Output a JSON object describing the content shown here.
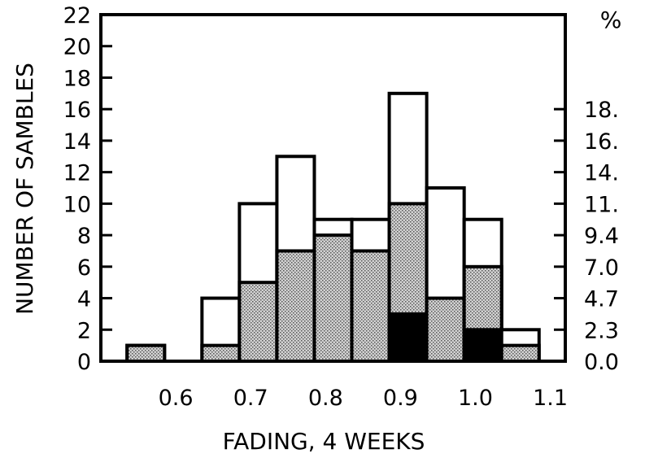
{
  "chart_data": {
    "type": "bar",
    "subtype": "stacked-histogram",
    "title": "",
    "xlabel": "FADING, 4 WEEKS",
    "ylabel": "NUMBER OF SAMBLES",
    "y2label": "%",
    "xlim": [
      0.5,
      1.12
    ],
    "ylim": [
      0,
      22
    ],
    "x_ticks": [
      "0.6",
      "0.7",
      "0.8",
      "0.9",
      "1.0",
      "1.1"
    ],
    "x_tick_values": [
      0.6,
      0.7,
      0.8,
      0.9,
      1.0,
      1.1
    ],
    "y_ticks": [
      0,
      2,
      4,
      6,
      8,
      10,
      12,
      14,
      16,
      18,
      20,
      22
    ],
    "y2_ticks": [
      {
        "label": "0.0",
        "y": 0
      },
      {
        "label": "2.3",
        "y": 2
      },
      {
        "label": "4.7",
        "y": 4
      },
      {
        "label": "7.0",
        "y": 6
      },
      {
        "label": "9.4",
        "y": 8
      },
      {
        "label": "11.",
        "y": 10
      },
      {
        "label": "14.",
        "y": 12
      },
      {
        "label": "16.",
        "y": 14
      },
      {
        "label": "18.",
        "y": 16
      }
    ],
    "bins": [
      {
        "start": 0.535,
        "end": 0.585,
        "black": 0,
        "dotted": 1,
        "total": 1
      },
      {
        "start": 0.635,
        "end": 0.685,
        "black": 0,
        "dotted": 1,
        "total": 4
      },
      {
        "start": 0.685,
        "end": 0.735,
        "black": 0,
        "dotted": 5,
        "total": 10
      },
      {
        "start": 0.735,
        "end": 0.785,
        "black": 0,
        "dotted": 7,
        "total": 13
      },
      {
        "start": 0.785,
        "end": 0.835,
        "black": 0,
        "dotted": 8,
        "total": 9
      },
      {
        "start": 0.835,
        "end": 0.885,
        "black": 0,
        "dotted": 7,
        "total": 9
      },
      {
        "start": 0.885,
        "end": 0.935,
        "black": 3,
        "dotted": 10,
        "total": 17
      },
      {
        "start": 0.935,
        "end": 0.985,
        "black": 0,
        "dotted": 4,
        "total": 11
      },
      {
        "start": 0.985,
        "end": 1.035,
        "black": 2,
        "dotted": 6,
        "total": 9
      },
      {
        "start": 1.035,
        "end": 1.085,
        "black": 0,
        "dotted": 1,
        "total": 2
      }
    ],
    "grid": false,
    "legend": "none"
  }
}
